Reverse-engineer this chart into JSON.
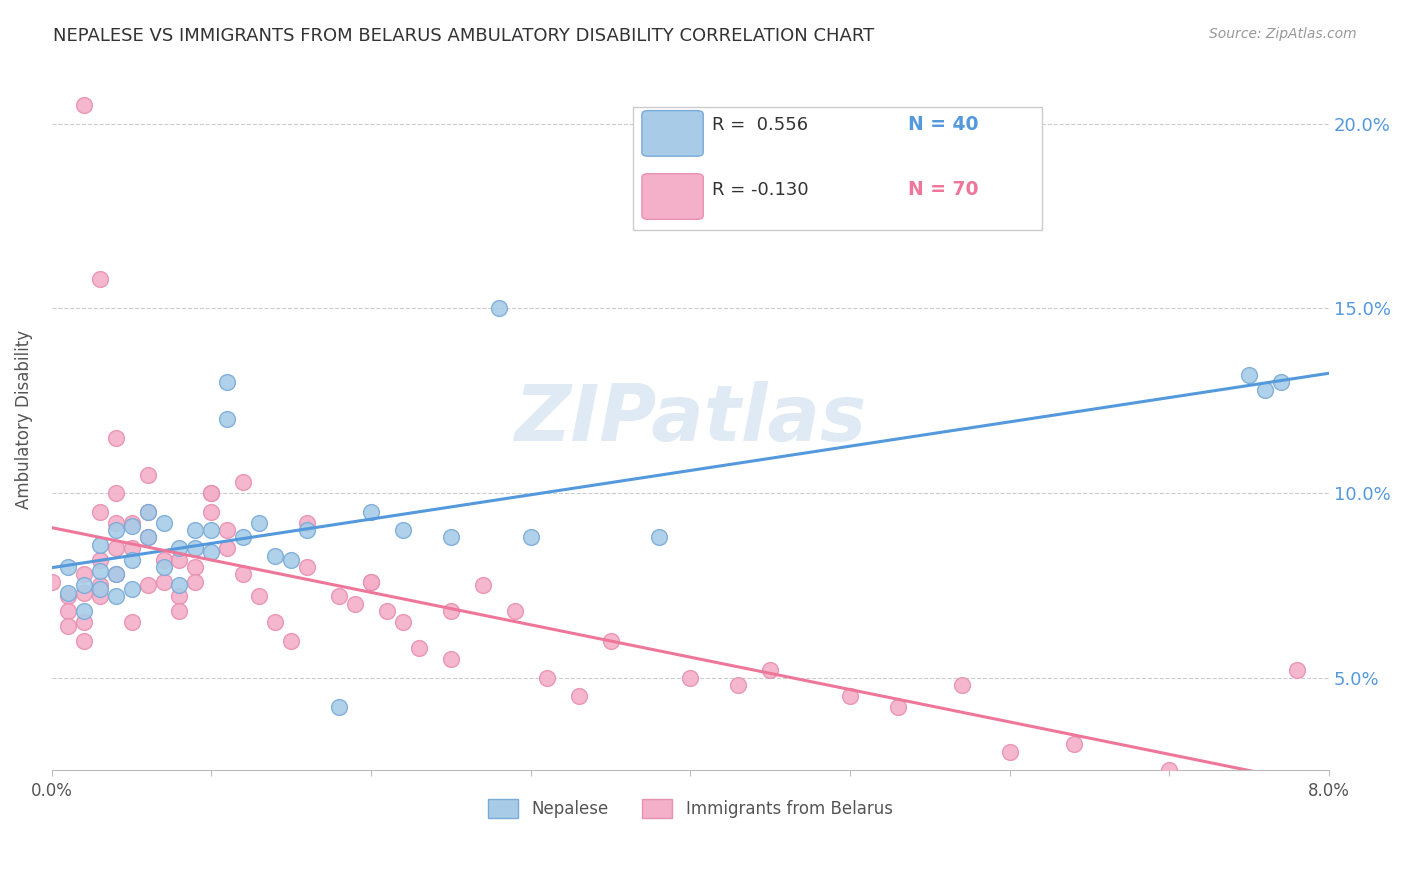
{
  "title": "NEPALESE VS IMMIGRANTS FROM BELARUS AMBULATORY DISABILITY CORRELATION CHART",
  "source": "Source: ZipAtlas.com",
  "ylabel": "Ambulatory Disability",
  "ytick_labels": [
    "5.0%",
    "10.0%",
    "15.0%",
    "20.0%"
  ],
  "ytick_values": [
    0.05,
    0.1,
    0.15,
    0.2
  ],
  "xmin": 0.0,
  "xmax": 0.08,
  "ymin": 0.025,
  "ymax": 0.215,
  "legend_blue_r": "R =  0.556",
  "legend_blue_n": "N = 40",
  "legend_pink_r": "R = -0.130",
  "legend_pink_n": "N = 70",
  "color_blue": "#A8CCE8",
  "color_pink": "#F4B0C8",
  "color_blue_edge": "#7AAAD8",
  "color_pink_edge": "#E890B0",
  "color_blue_line": "#5599DD",
  "color_pink_line": "#EE7799",
  "color_title": "#333333",
  "color_source": "#999999",
  "color_ytick": "#5599DD",
  "nepalese_x": [
    0.001,
    0.001,
    0.002,
    0.002,
    0.003,
    0.003,
    0.003,
    0.004,
    0.004,
    0.004,
    0.005,
    0.005,
    0.005,
    0.006,
    0.006,
    0.007,
    0.007,
    0.008,
    0.008,
    0.009,
    0.009,
    0.01,
    0.01,
    0.011,
    0.011,
    0.012,
    0.013,
    0.014,
    0.015,
    0.016,
    0.018,
    0.02,
    0.022,
    0.025,
    0.028,
    0.03,
    0.038,
    0.075,
    0.076,
    0.077
  ],
  "nepalese_y": [
    0.073,
    0.08,
    0.075,
    0.068,
    0.074,
    0.079,
    0.086,
    0.072,
    0.078,
    0.09,
    0.074,
    0.082,
    0.091,
    0.088,
    0.095,
    0.08,
    0.092,
    0.085,
    0.075,
    0.09,
    0.085,
    0.09,
    0.084,
    0.13,
    0.12,
    0.088,
    0.092,
    0.083,
    0.082,
    0.09,
    0.042,
    0.095,
    0.09,
    0.088,
    0.15,
    0.088,
    0.088,
    0.132,
    0.128,
    0.13
  ],
  "belarus_x": [
    0.0,
    0.001,
    0.001,
    0.001,
    0.002,
    0.002,
    0.002,
    0.002,
    0.003,
    0.003,
    0.003,
    0.003,
    0.004,
    0.004,
    0.004,
    0.004,
    0.005,
    0.005,
    0.005,
    0.006,
    0.006,
    0.006,
    0.007,
    0.007,
    0.008,
    0.008,
    0.009,
    0.009,
    0.01,
    0.01,
    0.011,
    0.011,
    0.012,
    0.013,
    0.014,
    0.015,
    0.016,
    0.018,
    0.019,
    0.02,
    0.021,
    0.022,
    0.023,
    0.025,
    0.027,
    0.029,
    0.031,
    0.033,
    0.035,
    0.04,
    0.043,
    0.045,
    0.05,
    0.053,
    0.057,
    0.06,
    0.064,
    0.07,
    0.075,
    0.078,
    0.002,
    0.003,
    0.004,
    0.006,
    0.008,
    0.01,
    0.012,
    0.016,
    0.02,
    0.025
  ],
  "belarus_y": [
    0.076,
    0.072,
    0.068,
    0.064,
    0.078,
    0.073,
    0.065,
    0.06,
    0.082,
    0.075,
    0.095,
    0.072,
    0.1,
    0.092,
    0.085,
    0.078,
    0.092,
    0.085,
    0.065,
    0.095,
    0.088,
    0.075,
    0.082,
    0.076,
    0.072,
    0.068,
    0.08,
    0.076,
    0.095,
    0.1,
    0.09,
    0.085,
    0.078,
    0.072,
    0.065,
    0.06,
    0.08,
    0.072,
    0.07,
    0.076,
    0.068,
    0.065,
    0.058,
    0.055,
    0.075,
    0.068,
    0.05,
    0.045,
    0.06,
    0.05,
    0.048,
    0.052,
    0.045,
    0.042,
    0.048,
    0.03,
    0.032,
    0.025,
    0.022,
    0.052,
    0.205,
    0.158,
    0.115,
    0.105,
    0.082,
    0.1,
    0.103,
    0.092,
    0.076,
    0.068
  ]
}
